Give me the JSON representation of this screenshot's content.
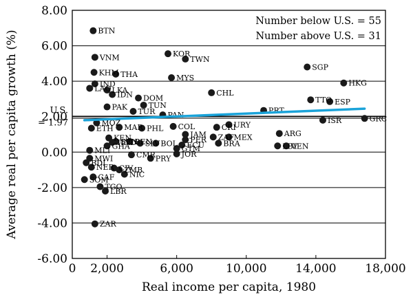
{
  "chart_data": {
    "type": "scatter",
    "xlabel": "Real income per capita, 1980",
    "ylabel": "Average real per capita growth (%)",
    "xlim": [
      0,
      18000
    ],
    "ylim": [
      -6,
      8
    ],
    "x_ticks": [
      0,
      2000,
      6000,
      10000,
      14000,
      18000
    ],
    "x_tick_labels": [
      "0",
      "2,000",
      "6,000",
      "10,000",
      "14,000",
      "18,000"
    ],
    "y_ticks": [
      8,
      6,
      4,
      2,
      0,
      -2,
      -4,
      -6
    ],
    "y_tick_labels": [
      "8.00",
      "6.00",
      "4.00",
      "2.00",
      "0.00",
      "-2.00",
      "-4.00",
      "-6.00"
    ],
    "grid": false,
    "reference_line": {
      "y": 1.97,
      "label_top": "U.S.",
      "label_bottom": "= 1.97"
    },
    "annotations": [
      "Number below U.S. = 55",
      "Number above U.S. = 31"
    ],
    "trend_line": {
      "color": "#1aa3d9",
      "x": [
        700,
        16800
      ],
      "y": [
        1.8,
        2.45
      ]
    },
    "points": [
      {
        "x": 1200,
        "y": 6.85,
        "label": "BTN"
      },
      {
        "x": 1300,
        "y": 5.35,
        "label": "VNM"
      },
      {
        "x": 1250,
        "y": 4.5,
        "label": "KHM"
      },
      {
        "x": 2500,
        "y": 4.4,
        "label": "THA"
      },
      {
        "x": 5500,
        "y": 5.55,
        "label": "KOR"
      },
      {
        "x": 6500,
        "y": 5.25,
        "label": "TWN"
      },
      {
        "x": 5700,
        "y": 4.2,
        "label": "MYS"
      },
      {
        "x": 13500,
        "y": 4.8,
        "label": "SGP"
      },
      {
        "x": 15600,
        "y": 3.9,
        "label": "HKG"
      },
      {
        "x": 8000,
        "y": 3.35,
        "label": "CHL"
      },
      {
        "x": 13700,
        "y": 2.95,
        "label": "TTO"
      },
      {
        "x": 14800,
        "y": 2.85,
        "label": "ESP"
      },
      {
        "x": 11000,
        "y": 2.35,
        "label": "PRT"
      },
      {
        "x": 14400,
        "y": 1.8,
        "label": "ISR"
      },
      {
        "x": 16800,
        "y": 1.9,
        "label": "GRC"
      },
      {
        "x": 1000,
        "y": 3.6,
        "label": "LAO"
      },
      {
        "x": 1300,
        "y": 3.85,
        "label": "IND"
      },
      {
        "x": 2000,
        "y": 3.5,
        "label": "LKA"
      },
      {
        "x": 2300,
        "y": 3.25,
        "label": "IDN"
      },
      {
        "x": 3800,
        "y": 3.05,
        "label": "DOM"
      },
      {
        "x": 4100,
        "y": 2.65,
        "label": "TUN"
      },
      {
        "x": 3500,
        "y": 2.3,
        "label": "TUR"
      },
      {
        "x": 5200,
        "y": 2.1,
        "label": "PAN"
      },
      {
        "x": 2000,
        "y": 2.55,
        "label": "PAK"
      },
      {
        "x": 5800,
        "y": 1.45,
        "label": "COL"
      },
      {
        "x": 4000,
        "y": 1.35,
        "label": "PHL"
      },
      {
        "x": 6500,
        "y": 1.0,
        "label": "JAM"
      },
      {
        "x": 8300,
        "y": 1.4,
        "label": "CRI"
      },
      {
        "x": 9000,
        "y": 1.55,
        "label": "URY"
      },
      {
        "x": 8100,
        "y": 0.85,
        "label": "ZAF"
      },
      {
        "x": 9000,
        "y": 0.85,
        "label": "MEX"
      },
      {
        "x": 8400,
        "y": 0.5,
        "label": "BRA"
      },
      {
        "x": 6500,
        "y": 0.7,
        "label": "PER"
      },
      {
        "x": 6300,
        "y": 0.4,
        "label": "ECU"
      },
      {
        "x": 6000,
        "y": 0.2,
        "label": "GTM"
      },
      {
        "x": 6000,
        "y": -0.1,
        "label": "JOR"
      },
      {
        "x": 11900,
        "y": 1.05,
        "label": "ARG"
      },
      {
        "x": 11800,
        "y": 0.35,
        "label": "LBY"
      },
      {
        "x": 12300,
        "y": 0.35,
        "label": "VEN"
      },
      {
        "x": 4800,
        "y": 0.5,
        "label": "BOL"
      },
      {
        "x": 3900,
        "y": 0.5,
        "label": "SLV"
      },
      {
        "x": 3400,
        "y": -0.15,
        "label": "CMR"
      },
      {
        "x": 4500,
        "y": -0.35,
        "label": "PRY"
      },
      {
        "x": 1000,
        "y": 0.1,
        "label": "MLI"
      },
      {
        "x": 1000,
        "y": -0.35,
        "label": "MWI"
      },
      {
        "x": 800,
        "y": -0.6,
        "label": "BDI"
      },
      {
        "x": 1100,
        "y": -0.85,
        "label": "NER"
      },
      {
        "x": 1200,
        "y": -1.4,
        "label": "CAF"
      },
      {
        "x": 700,
        "y": -1.55,
        "label": "SOM"
      },
      {
        "x": 2400,
        "y": -0.9,
        "label": "CIV"
      },
      {
        "x": 2700,
        "y": -1.0,
        "label": "ZMB"
      },
      {
        "x": 3000,
        "y": -1.25,
        "label": "NIC"
      },
      {
        "x": 1600,
        "y": -1.95,
        "label": "TGO"
      },
      {
        "x": 1900,
        "y": -2.2,
        "label": "LBR"
      },
      {
        "x": 1300,
        "y": -4.05,
        "label": "ZAR"
      },
      {
        "x": 1100,
        "y": 1.35,
        "label": "ETH"
      },
      {
        "x": 1400,
        "y": 1.65,
        "label": "MOZ"
      },
      {
        "x": 2700,
        "y": 1.4,
        "label": "MAR"
      },
      {
        "x": 2100,
        "y": 0.8,
        "label": "KEN"
      },
      {
        "x": 2300,
        "y": 0.55,
        "label": "HND"
      },
      {
        "x": 2500,
        "y": 0.6,
        "label": "SEN"
      },
      {
        "x": 2000,
        "y": 0.35,
        "label": "GHA"
      },
      {
        "x": 3300,
        "y": 0.6,
        "label": "BEN"
      }
    ]
  }
}
